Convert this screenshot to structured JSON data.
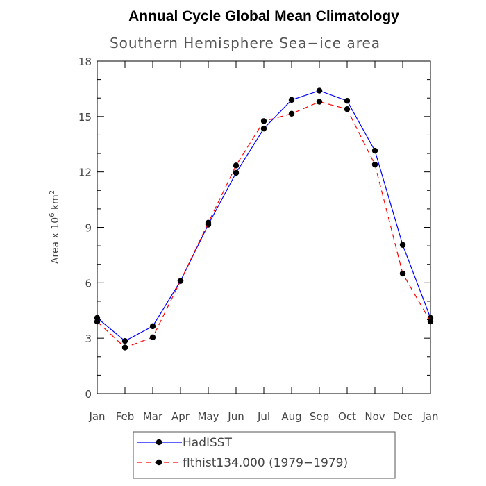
{
  "chart_data": {
    "type": "line",
    "title": "Annual Cycle Global Mean Climatology",
    "subtitle": "Southern Hemisphere Sea−ice area",
    "ylabel_prefix": "Area x 10",
    "ylabel_exp1": "6",
    "ylabel_mid": " km",
    "ylabel_exp2": "2",
    "categories": [
      "Jan",
      "Feb",
      "Mar",
      "Apr",
      "May",
      "Jun",
      "Jul",
      "Aug",
      "Sep",
      "Oct",
      "Nov",
      "Dec",
      "Jan"
    ],
    "ylim": [
      0,
      18
    ],
    "yticks": [
      "0",
      "3",
      "6",
      "9",
      "12",
      "15",
      "18"
    ],
    "series": [
      {
        "name": "HadISST",
        "color": "#0000ff",
        "dash": "solid",
        "values": [
          4.1,
          2.85,
          3.65,
          6.1,
          9.15,
          11.95,
          14.35,
          15.9,
          16.4,
          15.85,
          13.15,
          8.05,
          4.1
        ]
      },
      {
        "name": "flthist134.000 (1979−1979)",
        "color": "#ff0000",
        "dash": "dashed",
        "values": [
          3.9,
          2.5,
          3.05,
          6.1,
          9.25,
          12.35,
          14.75,
          15.15,
          15.8,
          15.4,
          12.4,
          6.5,
          3.9
        ]
      }
    ],
    "legend_position": "bottom-left"
  }
}
